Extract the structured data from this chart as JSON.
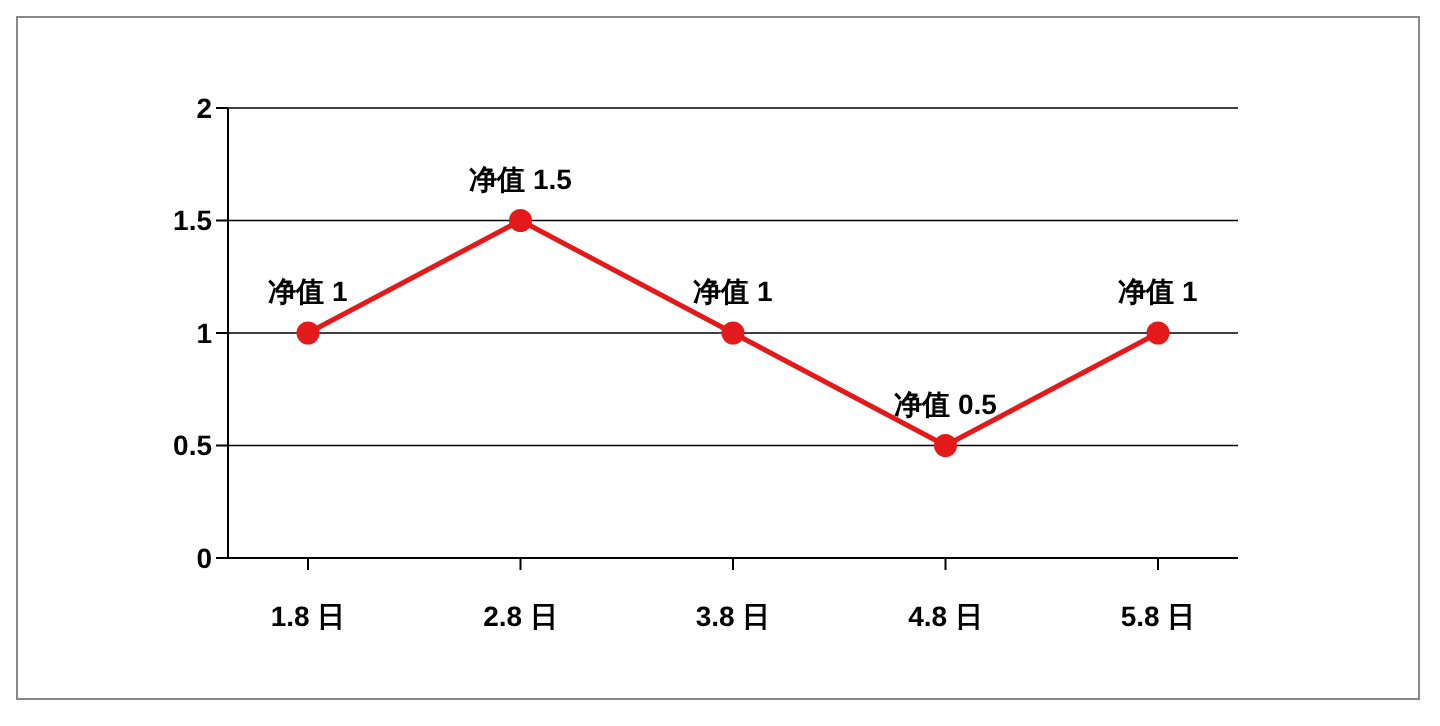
{
  "chart_data": {
    "type": "line",
    "categories": [
      "1.8 日",
      "2.8 日",
      "3.8 日",
      "4.8 日",
      "5.8 日"
    ],
    "series": [
      {
        "color": "#e41a1a",
        "values": [
          1,
          1.5,
          1,
          0.5,
          1
        ],
        "value_labels": [
          "净值 1",
          "净值 1.5",
          "净值 1",
          "净值 0.5",
          "净值 1"
        ]
      }
    ],
    "ylim": [
      0,
      2
    ],
    "yticks": [
      0,
      0.5,
      1,
      1.5,
      2
    ],
    "grid": "y",
    "marker": "circle",
    "line_style": "solid"
  }
}
